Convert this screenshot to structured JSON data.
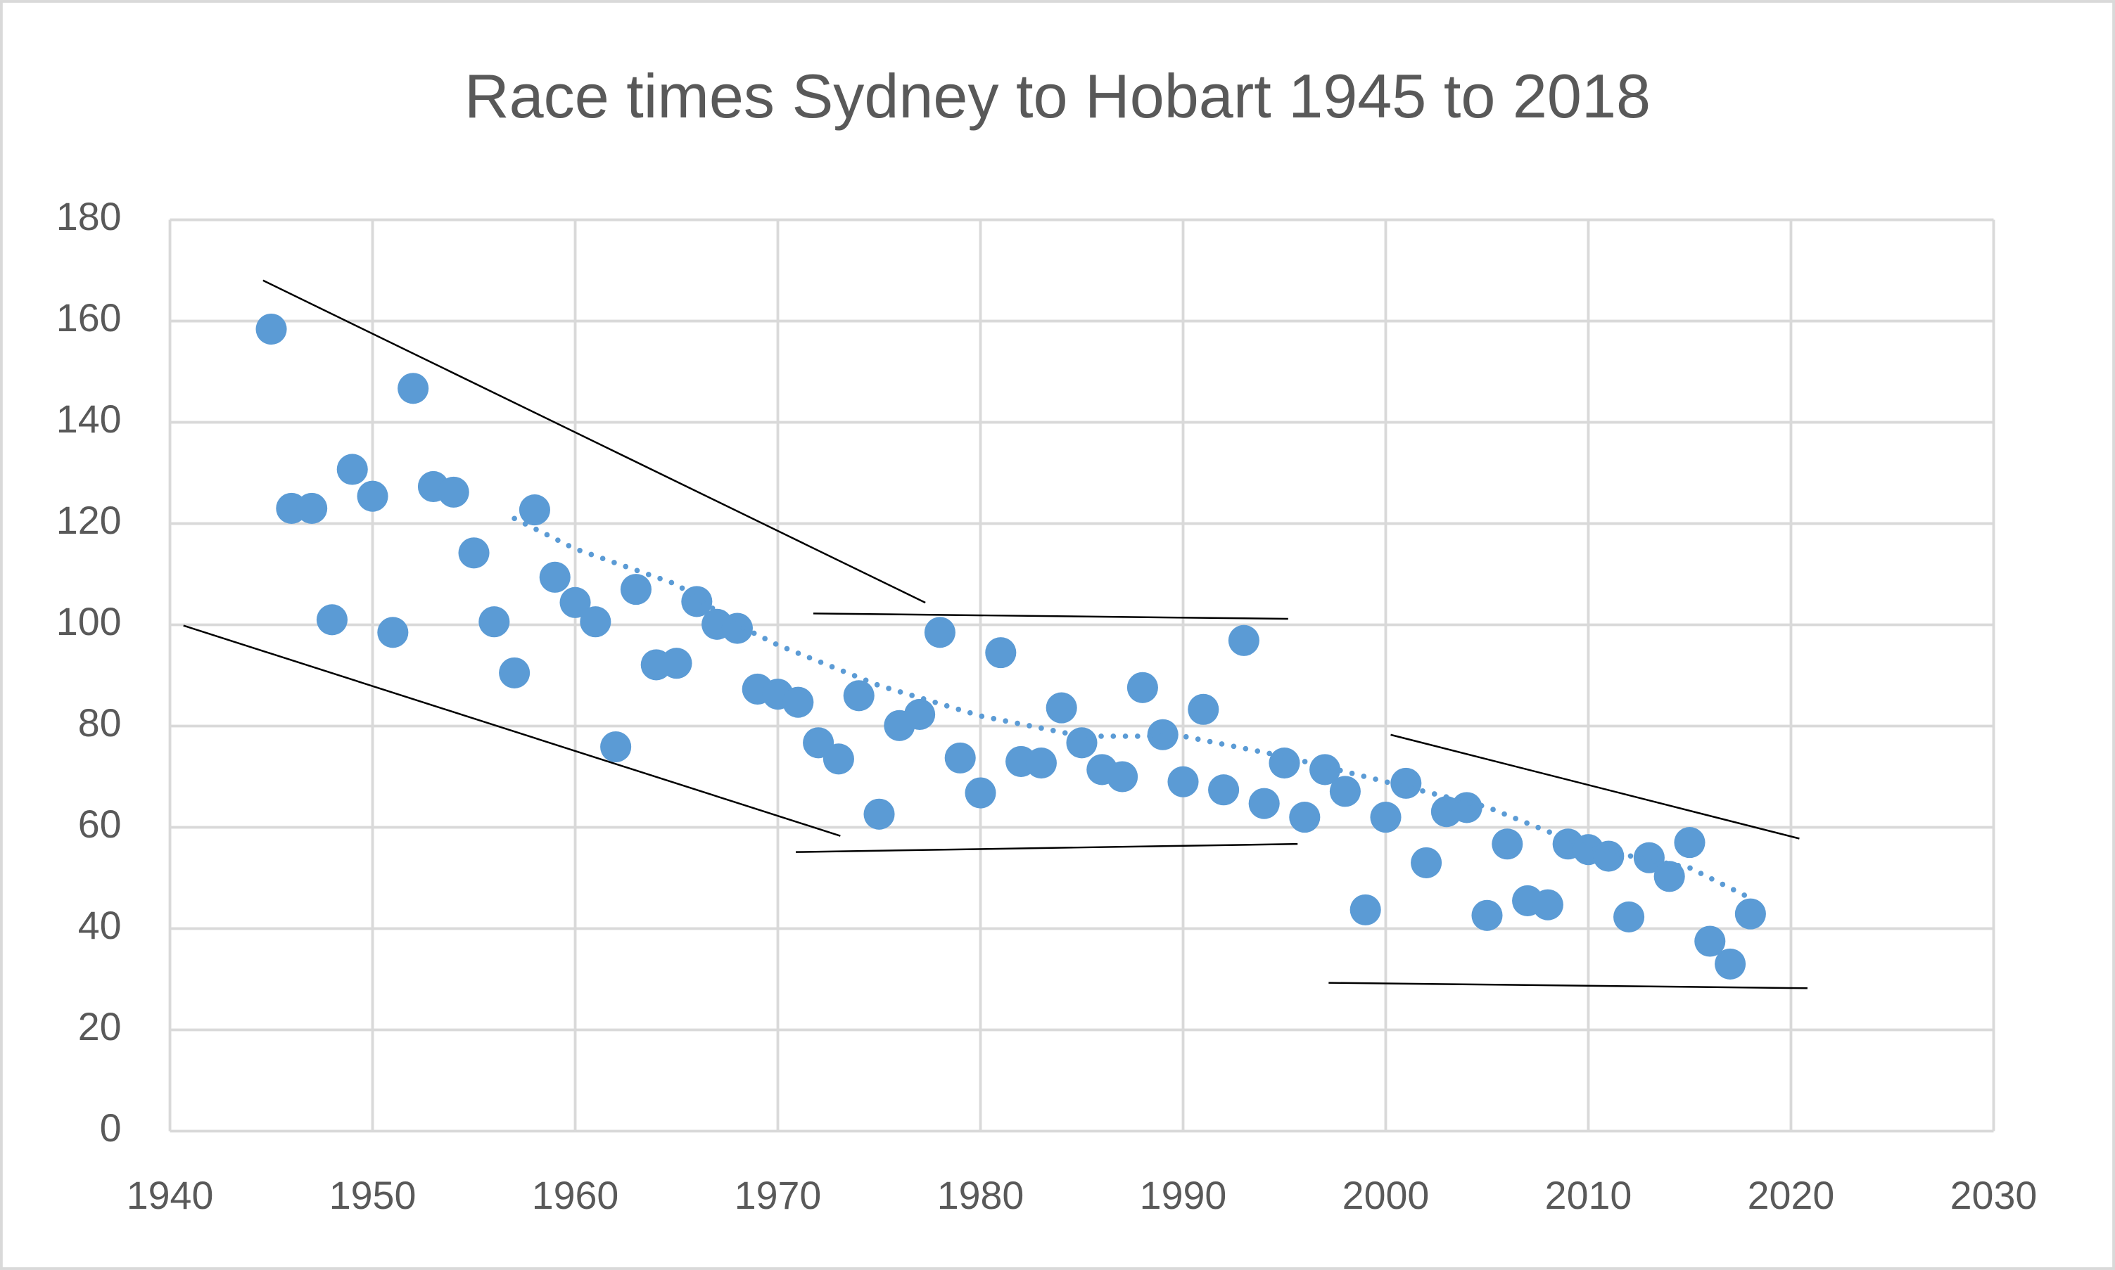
{
  "chart_data": {
    "type": "scatter",
    "title": "Race times Sydney to Hobart 1945 to 2018",
    "xlim": [
      1940,
      2030
    ],
    "xticks": [
      1940,
      1950,
      1960,
      1970,
      1980,
      1990,
      2000,
      2010,
      2020,
      2030
    ],
    "ylim": [
      0,
      180
    ],
    "yticks": [
      0,
      20,
      40,
      60,
      80,
      100,
      120,
      140,
      160,
      180
    ],
    "grid": true,
    "series": [
      {
        "color": "#5b9bd5",
        "x": [
          1945,
          1946,
          1947,
          1948,
          1949,
          1950,
          1951,
          1952,
          1953,
          1954,
          1955,
          1956,
          1957,
          1958,
          1959,
          1960,
          1961,
          1962,
          1963,
          1964,
          1965,
          1966,
          1967,
          1968,
          1969,
          1970,
          1971,
          1972,
          1973,
          1974,
          1975,
          1976,
          1977,
          1978,
          1979,
          1980,
          1981,
          1982,
          1983,
          1984,
          1985,
          1986,
          1987,
          1988,
          1989,
          1990,
          1991,
          1992,
          1993,
          1994,
          1995,
          1996,
          1997,
          1998,
          1999,
          2000,
          2001,
          2002,
          2003,
          2004,
          2005,
          2006,
          2007,
          2008,
          2009,
          2010,
          2011,
          2012,
          2013,
          2014,
          2015,
          2016,
          2017,
          2018
        ],
        "values": [
          158.4,
          123,
          123,
          101,
          130.7,
          125.4,
          98.5,
          146.7,
          127.3,
          126.2,
          114.2,
          100.6,
          90.5,
          122.7,
          109.4,
          104.4,
          100.6,
          75.9,
          107,
          92.1,
          92.4,
          104.6,
          100.1,
          99.3,
          87.3,
          86.3,
          84.7,
          76.7,
          73.5,
          86,
          62.6,
          80.1,
          82.3,
          98.5,
          73.7,
          66.8,
          94.5,
          73,
          72.7,
          83.6,
          76.7,
          71.4,
          70,
          87.6,
          78.3,
          69,
          83.3,
          67.4,
          96.9,
          64.7,
          72.7,
          62,
          71.4,
          67.1,
          43.7,
          62,
          68.7,
          53,
          63.1,
          63.9,
          42.6,
          56.7,
          45.5,
          44.7,
          56.7,
          55.6,
          54.3,
          42.3,
          54,
          50.3,
          57,
          37.5,
          33,
          42.9
        ]
      },
      {
        "color": "#5b9bd5",
        "line": "dotted",
        "x": [
          1957,
          1960,
          1965,
          1968,
          1970,
          1975,
          1980,
          1985,
          1988,
          1990,
          1995,
          2000,
          2005,
          2010,
          2015,
          2018
        ],
        "values": [
          121,
          115,
          108,
          100,
          96,
          88,
          82,
          78,
          78,
          78,
          74,
          69,
          64,
          56,
          52,
          46
        ]
      }
    ]
  }
}
